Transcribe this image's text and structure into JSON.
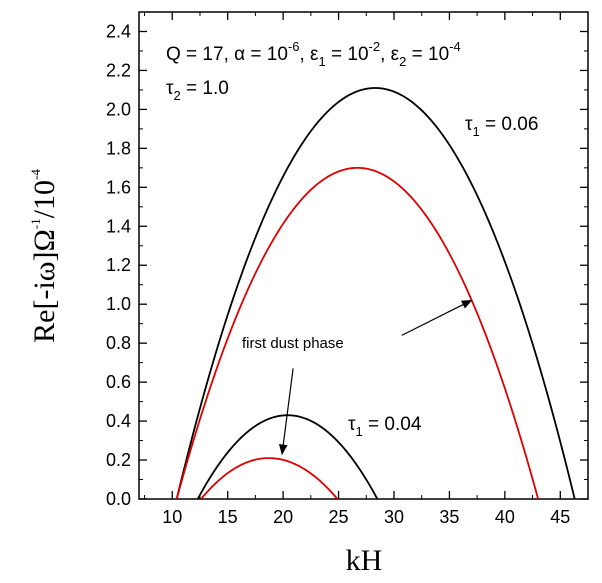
{
  "chart_data": {
    "type": "line",
    "xlabel": "kH",
    "ylabel": {
      "base": "Re[-iω]Ω",
      "sup1": "-1",
      "mid": "/10",
      "sup2": "-4"
    },
    "xlim": [
      7,
      47.5
    ],
    "ylim": [
      0,
      2.5
    ],
    "xticks": [
      10,
      15,
      20,
      25,
      30,
      35,
      40,
      45
    ],
    "yticks": [
      0.0,
      0.2,
      0.4,
      0.6,
      0.8,
      1.0,
      1.2,
      1.4,
      1.6,
      1.8,
      2.0,
      2.2,
      2.4
    ],
    "ytick_labels": [
      "0.0",
      "0.2",
      "0.4",
      "0.6",
      "0.8",
      "1.0",
      "1.2",
      "1.4",
      "1.6",
      "1.8",
      "2.0",
      "2.2",
      "2.4"
    ],
    "series": [
      {
        "color": "#000000",
        "x_start": 10.4,
        "x_end": 46.3,
        "x_peak": 28.3,
        "y_peak": 2.11
      },
      {
        "color": "#dd0000",
        "x_start": 10.4,
        "x_end": 43.0,
        "x_peak": 26.7,
        "y_peak": 1.7
      },
      {
        "color": "#000000",
        "x_start": 12.3,
        "x_end": 28.5,
        "x_peak": 20.4,
        "y_peak": 0.43
      },
      {
        "color": "#dd0000",
        "x_start": 12.6,
        "x_end": 24.9,
        "x_peak": 18.7,
        "y_peak": 0.21
      }
    ],
    "annotations": {
      "params": {
        "q": "Q = 17, ",
        "alpha": "α = 10",
        "alpha_exp": "-6",
        "eps1": ", ε",
        "eps1_sub": "1",
        "eps1_val": " = 10",
        "eps1_exp": "-2",
        "eps2": ", ε",
        "eps2_sub": "2",
        "eps2_val": " = 10",
        "eps2_exp": "-4"
      },
      "tau2": {
        "sym": "τ",
        "sub": "2",
        "val": " = 1.0"
      },
      "tau1_high": {
        "sym": "τ",
        "sub": "1",
        "val": " = 0.06"
      },
      "tau1_low": {
        "sym": "τ",
        "sub": "1",
        "val": " = 0.04"
      },
      "dust_phase": "first dust phase",
      "arrows": [
        {
          "from": [
            30.7,
            0.84
          ],
          "to": [
            37.0,
            1.02
          ]
        },
        {
          "from": [
            20.9,
            0.67
          ],
          "to": [
            19.9,
            0.23
          ]
        }
      ]
    }
  }
}
